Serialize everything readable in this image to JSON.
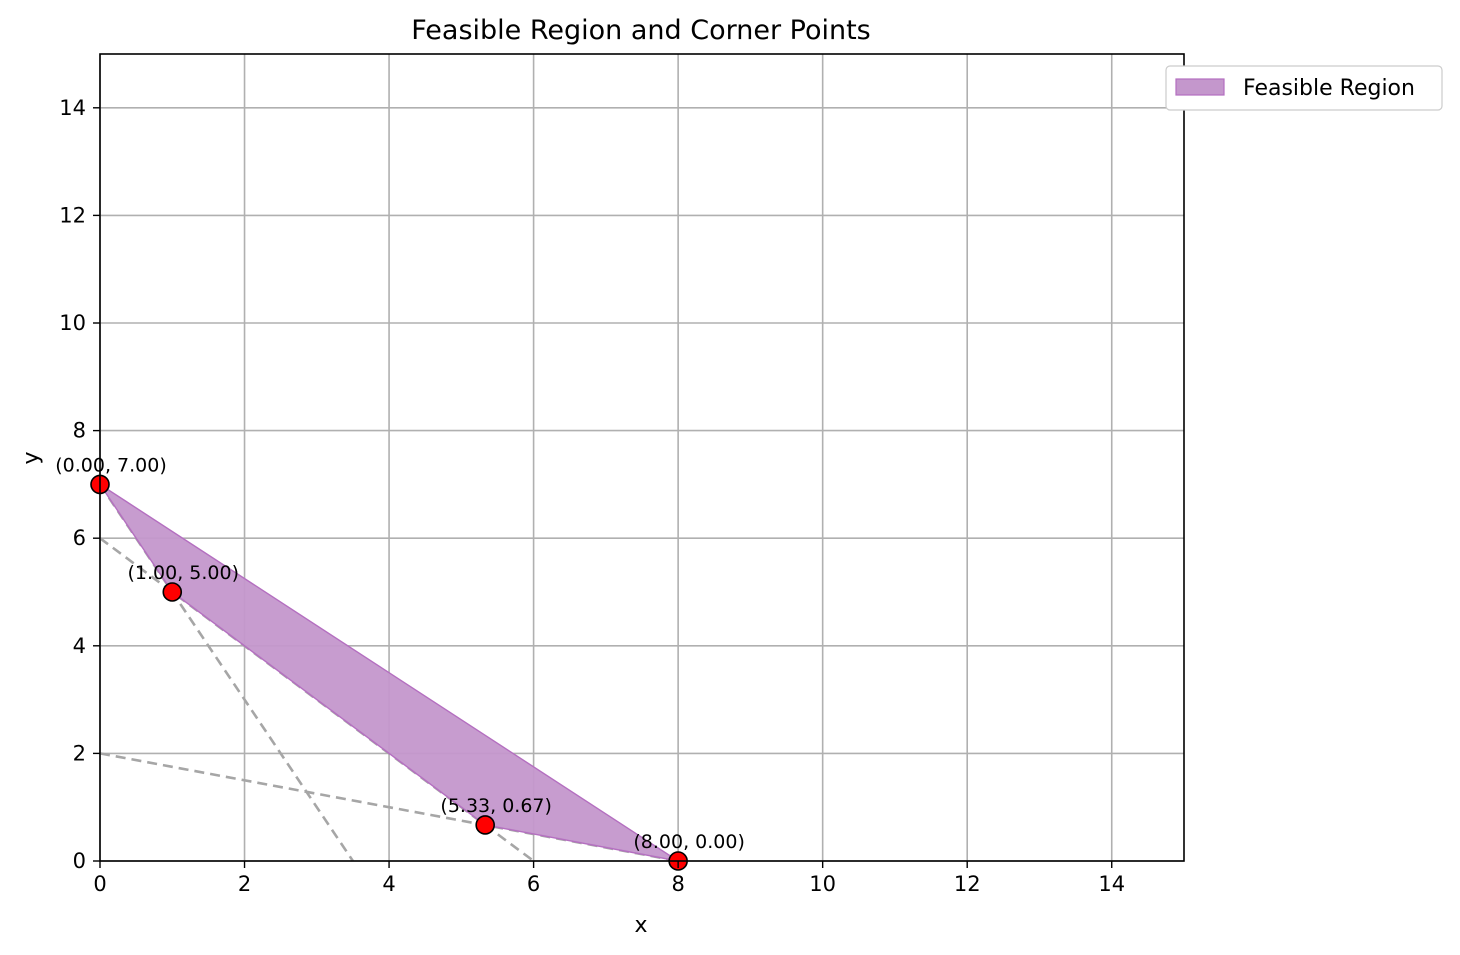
{
  "chart_data": {
    "type": "scatter",
    "title": "Feasible Region and Corner Points",
    "xlabel": "x",
    "ylabel": "y",
    "xlim": [
      0,
      15
    ],
    "ylim": [
      0,
      15
    ],
    "xticks": [
      0,
      2,
      4,
      6,
      8,
      10,
      12,
      14
    ],
    "yticks": [
      0,
      2,
      4,
      6,
      8,
      10,
      12,
      14
    ],
    "grid": true,
    "legend": {
      "placement": "outside-top-right",
      "entries": [
        {
          "label": "Feasible Region",
          "color": "#c497cc"
        }
      ]
    },
    "feasible_region": {
      "name": "Feasible Region",
      "fill_color": "#c497cc",
      "edge_color": "#b46fc0",
      "polygon": [
        [
          0,
          7
        ],
        [
          8,
          0
        ],
        [
          5.33,
          0.67
        ],
        [
          1,
          5
        ],
        [
          0.7,
          5.6
        ],
        [
          0,
          7
        ]
      ]
    },
    "constraint_lines": [
      {
        "x": [
          0,
          3.5
        ],
        "y": [
          7,
          0
        ]
      },
      {
        "x": [
          0,
          6
        ],
        "y": [
          6,
          0
        ]
      },
      {
        "x": [
          0,
          8
        ],
        "y": [
          2,
          0
        ]
      }
    ],
    "line_color": "#a6a6a6",
    "corner_points": [
      {
        "x": 0,
        "y": 7,
        "label": "(0.00, 7.00)"
      },
      {
        "x": 1,
        "y": 5,
        "label": "(1.00, 5.00)"
      },
      {
        "x": 5.33,
        "y": 0.67,
        "label": "(5.33, 0.67)"
      },
      {
        "x": 8,
        "y": 0,
        "label": "(8.00, 0.00)"
      }
    ],
    "point_color": "#ff0000"
  }
}
